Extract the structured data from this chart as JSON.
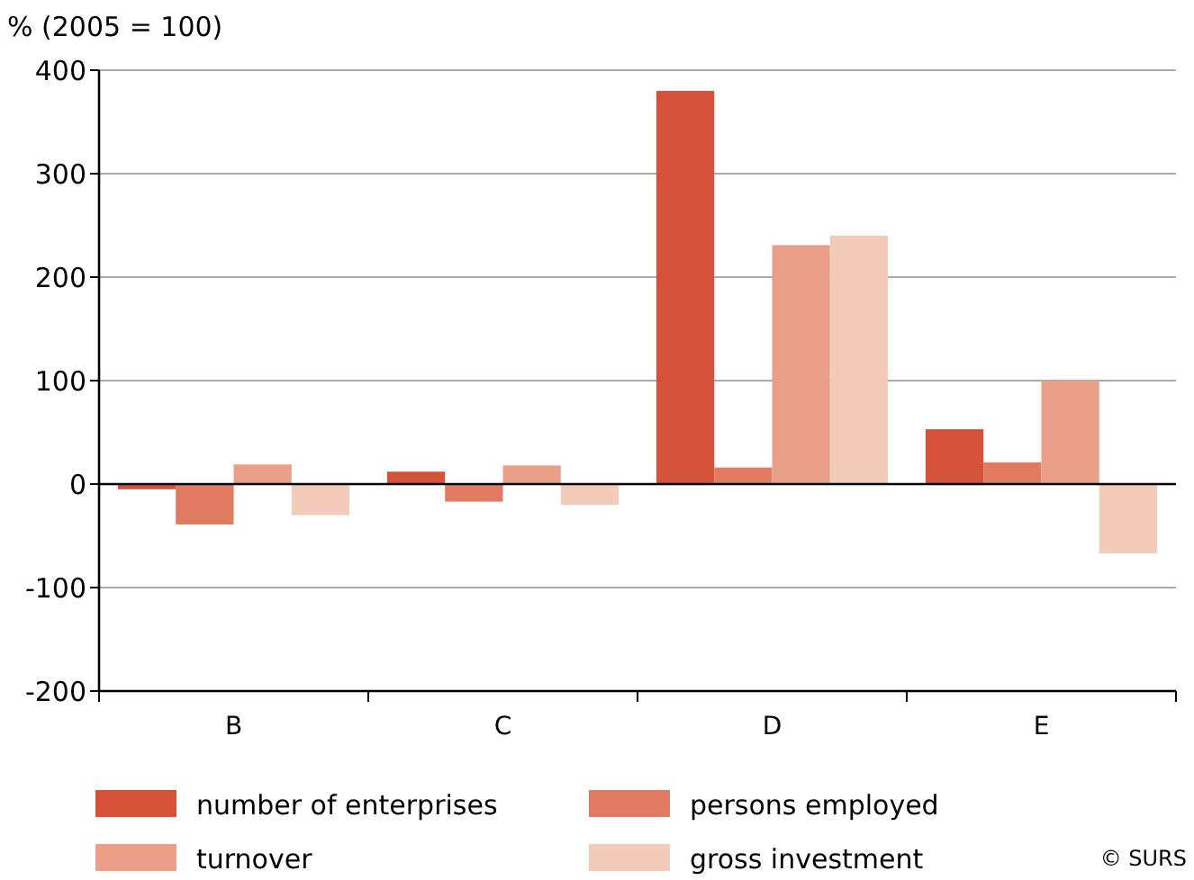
{
  "chart_data": {
    "type": "bar",
    "ylabel": "% (2005 = 100)",
    "categories": [
      "B",
      "C",
      "D",
      "E"
    ],
    "series": [
      {
        "name": "number of enterprises",
        "color": "#d4513a",
        "values": [
          -5,
          12,
          380,
          53
        ]
      },
      {
        "name": "persons employed",
        "color": "#e07a60",
        "values": [
          -39,
          -17,
          16,
          21
        ]
      },
      {
        "name": "turnover",
        "color": "#eaa088",
        "values": [
          19,
          18,
          231,
          100
        ]
      },
      {
        "name": "gross investment",
        "color": "#f3cbb9",
        "values": [
          -30,
          -20,
          240,
          -67
        ]
      }
    ],
    "ylim": [
      -200,
      400
    ],
    "yticks": [
      -200,
      -100,
      0,
      100,
      200,
      300,
      400
    ],
    "grid": "y",
    "legend": "bottom",
    "annotations": [
      "© SURS"
    ]
  }
}
